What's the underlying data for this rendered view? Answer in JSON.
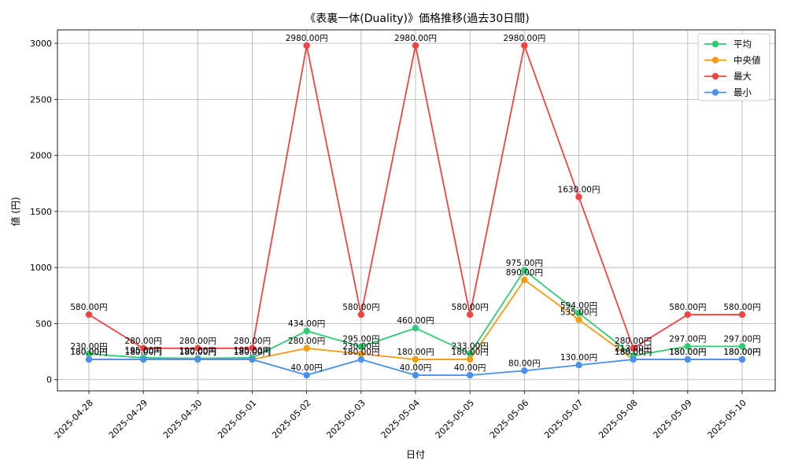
{
  "chart_data": {
    "type": "line",
    "title": "《表裏一体(Duality)》価格推移(過去30日間)",
    "xlabel": "日付",
    "ylabel": "値 (円)",
    "ylim": [
      -100,
      3120
    ],
    "yticks": [
      0,
      500,
      1000,
      1500,
      2000,
      2500,
      3000
    ],
    "grid": true,
    "legend_position": "top-right",
    "value_suffix": "円",
    "categories": [
      "2025-04-28",
      "2025-04-29",
      "2025-04-30",
      "2025-05-01",
      "2025-05-02",
      "2025-05-03",
      "2025-05-04",
      "2025-05-05",
      "2025-05-06",
      "2025-05-07",
      "2025-05-08",
      "2025-05-09",
      "2025-05-10"
    ],
    "series": [
      {
        "name": "平均",
        "color": "#2ecc71",
        "values": [
          230,
          195,
          190,
          195,
          434,
          295,
          460,
          233,
          975,
          594,
          213,
          297,
          297
        ]
      },
      {
        "name": "中央値",
        "color": "#f39c12",
        "values": [
          180,
          180,
          180,
          180,
          280,
          230,
          180,
          180,
          890,
          535,
          180,
          180,
          180
        ]
      },
      {
        "name": "最大",
        "color": "#ef4444",
        "values": [
          580,
          280,
          280,
          280,
          2980,
          580,
          2980,
          580,
          2980,
          1630,
          280,
          580,
          580
        ]
      },
      {
        "name": "最小",
        "color": "#4a90f0",
        "values": [
          180,
          180,
          180,
          180,
          40,
          180,
          40,
          40,
          80,
          130,
          180,
          180,
          180
        ]
      }
    ]
  }
}
